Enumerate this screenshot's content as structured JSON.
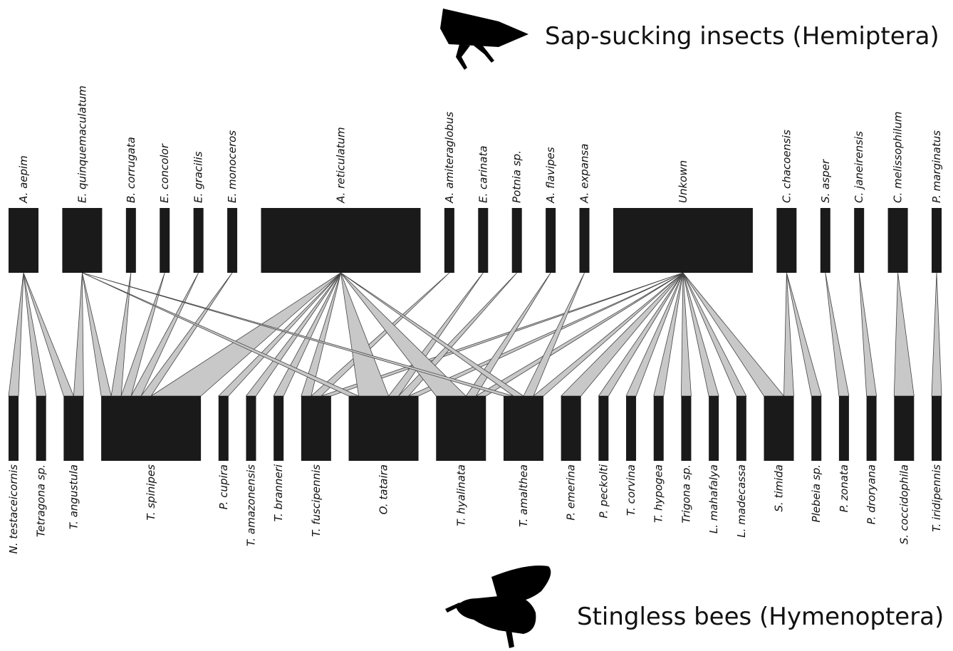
{
  "header": {
    "top_title": "Sap-sucking insects (Hemiptera)",
    "bottom_title": "Stingless bees (Hymenoptera)"
  },
  "top_nodes": [
    "A. aepim",
    "E. quinquemaculatum",
    "B. corrugata",
    "E. concolor",
    "E. gracilis",
    "E. monoceros",
    "A. reticulatum",
    "A. amiteraglobus",
    "E. carinata",
    "Potnia sp.",
    "A. flavipes",
    "A. expansa",
    "Unkown",
    "C. chacoensis",
    "S. asper",
    "C. janeirensis",
    "C. melissophilum",
    "P. marginatus"
  ],
  "bottom_nodes": [
    "N. testaceicornis",
    "Tetragona sp.",
    "T. angustula",
    "T. spinipes",
    "P. cupira",
    "T. amazonensis",
    "T. branneri",
    "T. fuscipennis",
    "O. tataira",
    "T. hyalinata",
    "T. amalthea",
    "P. emerina",
    "P. peckolti",
    "T. corvina",
    "T. hypogea",
    "Trigona sp.",
    "L. mahafalya",
    "L. madecassa",
    "S. timida",
    "Plebeia sp.",
    "P. zonata",
    "P. droryana",
    "S. coccidophila",
    "T. iridipennis"
  ],
  "links": [
    {
      "from": 0,
      "to": 0,
      "count": 1
    },
    {
      "from": 0,
      "to": 1,
      "count": 1
    },
    {
      "from": 0,
      "to": 2,
      "count": 1
    },
    {
      "from": 1,
      "to": 2,
      "count": 1
    },
    {
      "from": 1,
      "to": 3,
      "count": 1
    },
    {
      "from": 1,
      "to": 8,
      "count": 1
    },
    {
      "from": 1,
      "to": 10,
      "count": 1
    },
    {
      "from": 2,
      "to": 3,
      "count": 1
    },
    {
      "from": 3,
      "to": 3,
      "count": 1
    },
    {
      "from": 4,
      "to": 3,
      "count": 1
    },
    {
      "from": 5,
      "to": 3,
      "count": 1
    },
    {
      "from": 6,
      "to": 3,
      "count": 5
    },
    {
      "from": 6,
      "to": 4,
      "count": 1
    },
    {
      "from": 6,
      "to": 5,
      "count": 1
    },
    {
      "from": 6,
      "to": 6,
      "count": 1
    },
    {
      "from": 6,
      "to": 7,
      "count": 1
    },
    {
      "from": 6,
      "to": 8,
      "count": 3
    },
    {
      "from": 6,
      "to": 9,
      "count": 3
    },
    {
      "from": 6,
      "to": 10,
      "count": 1
    },
    {
      "from": 7,
      "to": 7,
      "count": 1
    },
    {
      "from": 8,
      "to": 8,
      "count": 1
    },
    {
      "from": 9,
      "to": 8,
      "count": 1
    },
    {
      "from": 10,
      "to": 9,
      "count": 1
    },
    {
      "from": 11,
      "to": 10,
      "count": 1
    },
    {
      "from": 12,
      "to": 7,
      "count": 1
    },
    {
      "from": 12,
      "to": 8,
      "count": 1
    },
    {
      "from": 12,
      "to": 9,
      "count": 1
    },
    {
      "from": 12,
      "to": 10,
      "count": 1
    },
    {
      "from": 12,
      "to": 11,
      "count": 2
    },
    {
      "from": 12,
      "to": 12,
      "count": 1
    },
    {
      "from": 12,
      "to": 13,
      "count": 1
    },
    {
      "from": 12,
      "to": 14,
      "count": 1
    },
    {
      "from": 12,
      "to": 15,
      "count": 1
    },
    {
      "from": 12,
      "to": 16,
      "count": 1
    },
    {
      "from": 12,
      "to": 17,
      "count": 1
    },
    {
      "from": 12,
      "to": 18,
      "count": 2
    },
    {
      "from": 13,
      "to": 18,
      "count": 1
    },
    {
      "from": 13,
      "to": 19,
      "count": 1
    },
    {
      "from": 14,
      "to": 20,
      "count": 1
    },
    {
      "from": 15,
      "to": 21,
      "count": 1
    },
    {
      "from": 16,
      "to": 22,
      "count": 2
    },
    {
      "from": 17,
      "to": 23,
      "count": 1
    }
  ]
}
